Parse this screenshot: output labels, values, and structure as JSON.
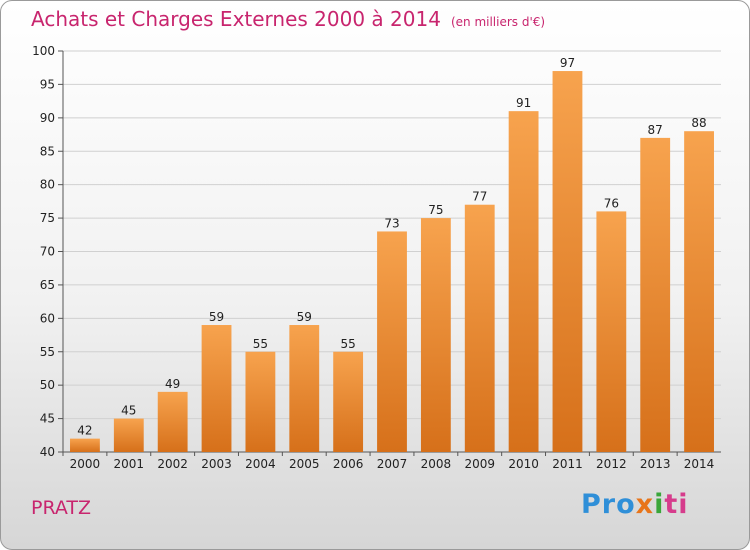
{
  "header": {
    "title": "Achats et Charges Externes 2000 à 2014",
    "subtitle": "(en milliers d'€)"
  },
  "footer": {
    "place": "PRATZ",
    "logo": [
      "Pro",
      "x",
      "i",
      "ti"
    ]
  },
  "colors": {
    "accent": "#c8256e",
    "bar_top": "#f7a34e",
    "bar_bottom": "#d6701a"
  },
  "chart_data": {
    "type": "bar",
    "title": "Achats et Charges Externes 2000 à 2014",
    "subtitle": "(en milliers d'€)",
    "categories": [
      "2000",
      "2001",
      "2002",
      "2003",
      "2004",
      "2005",
      "2006",
      "2007",
      "2008",
      "2009",
      "2010",
      "2011",
      "2012",
      "2013",
      "2014"
    ],
    "values": [
      42,
      45,
      49,
      59,
      55,
      59,
      55,
      73,
      75,
      77,
      91,
      97,
      76,
      87,
      88
    ],
    "ylim": [
      40,
      100
    ],
    "yticks": [
      40,
      45,
      50,
      55,
      60,
      65,
      70,
      75,
      80,
      85,
      90,
      95,
      100
    ],
    "grid": true,
    "legend": "none"
  }
}
